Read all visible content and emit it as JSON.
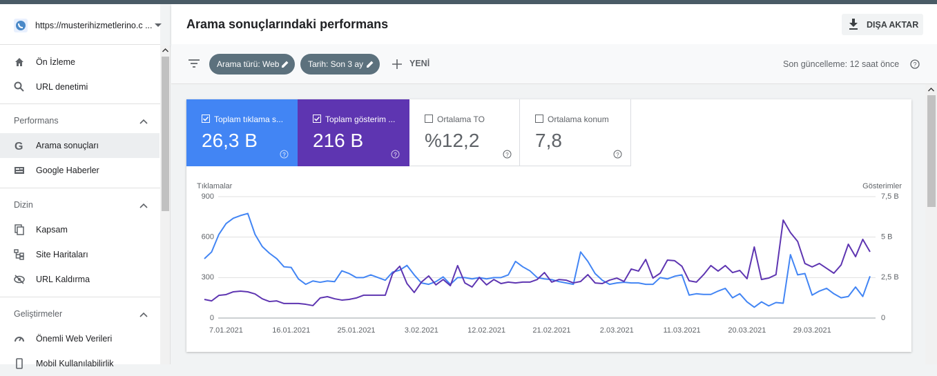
{
  "sidebar": {
    "site": "https://musterihizmetlerino.c ...",
    "groups": [
      {
        "items": [
          "Ön İzleme",
          "URL denetimi"
        ]
      },
      {
        "title": "Performans",
        "items": [
          "Arama sonuçları",
          "Google Haberler"
        ]
      },
      {
        "title": "Dizin",
        "items": [
          "Kapsam",
          "Site Haritaları",
          "URL Kaldırma"
        ]
      },
      {
        "title": "Geliştirmeler",
        "items": [
          "Önemli Web Verileri",
          "Mobil Kullanılabilirlik"
        ]
      }
    ]
  },
  "header": {
    "title": "Arama sonuçlarındaki performans",
    "export": "DIŞA AKTAR"
  },
  "filters": {
    "chips": [
      "Arama türü: Web",
      "Tarih: Son 3 ay"
    ],
    "new": "YENİ",
    "updated": "Son güncelleme: 12 saat önce"
  },
  "metrics": [
    {
      "label": "Toplam tıklama s...",
      "value": "26,3 B"
    },
    {
      "label": "Toplam gösterim ...",
      "value": "216 B"
    },
    {
      "label": "Ortalama TO",
      "value": "%12,2"
    },
    {
      "label": "Ortalama konum",
      "value": "7,8"
    }
  ],
  "chart_data": {
    "type": "line",
    "y_label": "Tıklamalar",
    "y2_label": "Gösterimler",
    "categories": [
      null,
      null,
      null,
      "7.01.2021",
      null,
      null,
      null,
      null,
      null,
      null,
      null,
      null,
      "16.01.2021",
      null,
      null,
      null,
      null,
      null,
      null,
      null,
      null,
      "25.01.2021",
      null,
      null,
      null,
      null,
      null,
      null,
      null,
      null,
      "3.02.2021",
      null,
      null,
      null,
      null,
      null,
      null,
      null,
      null,
      "12.02.2021",
      null,
      null,
      null,
      null,
      null,
      null,
      null,
      null,
      "21.02.2021",
      null,
      null,
      null,
      null,
      null,
      null,
      null,
      null,
      "2.03.2021",
      null,
      null,
      null,
      null,
      null,
      null,
      null,
      null,
      "11.03.2021",
      null,
      null,
      null,
      null,
      null,
      null,
      null,
      null,
      "20.03.2021",
      null,
      null,
      null,
      null,
      null,
      null,
      null,
      null,
      "29.03.2021",
      null,
      null,
      null,
      null,
      null,
      null,
      null,
      null
    ],
    "ylim": [
      0,
      900
    ],
    "yticks": [
      0,
      300,
      600,
      900
    ],
    "y2lim": [
      0,
      7500
    ],
    "y2ticks": [
      0,
      {
        "value": 2500,
        "label": "2,5 B"
      },
      {
        "value": 5000,
        "label": "5 B"
      },
      {
        "value": 7500,
        "label": "7,5 B"
      }
    ],
    "grid": true,
    "series": [
      {
        "color": "#4285f4",
        "values": [
          440,
          490,
          620,
          700,
          740,
          760,
          775,
          620,
          530,
          480,
          440,
          380,
          375,
          290,
          250,
          275,
          265,
          275,
          270,
          350,
          330,
          300,
          300,
          320,
          300,
          280,
          340,
          355,
          390,
          320,
          260,
          250,
          270,
          305,
          250,
          300,
          300,
          290,
          300,
          290,
          300,
          300,
          320,
          420,
          380,
          350,
          300,
          290,
          285,
          270,
          260,
          250,
          490,
          420,
          330,
          280,
          250,
          260,
          265,
          260,
          260,
          250,
          250,
          300,
          290,
          310,
          320,
          170,
          180,
          175,
          175,
          200,
          220,
          150,
          180,
          120,
          80,
          120,
          90,
          115,
          110,
          470,
          320,
          330,
          170,
          200,
          220,
          180,
          150,
          160,
          230,
          160,
          310
        ]
      },
      {
        "color": "#5e35b1",
        "axis": "y2",
        "values": [
          1150,
          1060,
          1400,
          1450,
          1620,
          1660,
          1620,
          1490,
          1190,
          1020,
          1060,
          900,
          900,
          900,
          850,
          770,
          1240,
          1320,
          1190,
          1110,
          1150,
          1240,
          1410,
          1410,
          1410,
          1410,
          2730,
          3200,
          2130,
          1580,
          2220,
          2600,
          2050,
          2380,
          2000,
          3240,
          2170,
          1920,
          2510,
          2050,
          2380,
          2130,
          2220,
          2170,
          2220,
          2220,
          2380,
          2810,
          2220,
          2380,
          2340,
          2170,
          2260,
          2680,
          2170,
          2130,
          2340,
          2470,
          2260,
          3030,
          2900,
          3620,
          2470,
          2770,
          3580,
          3540,
          3200,
          2300,
          2220,
          2680,
          3240,
          2900,
          3240,
          2810,
          2940,
          2430,
          4390,
          2380,
          2470,
          2680,
          6050,
          5280,
          4730,
          3370,
          3160,
          3370,
          3070,
          2770,
          3280,
          4560,
          3790,
          4860,
          4090
        ]
      }
    ]
  }
}
